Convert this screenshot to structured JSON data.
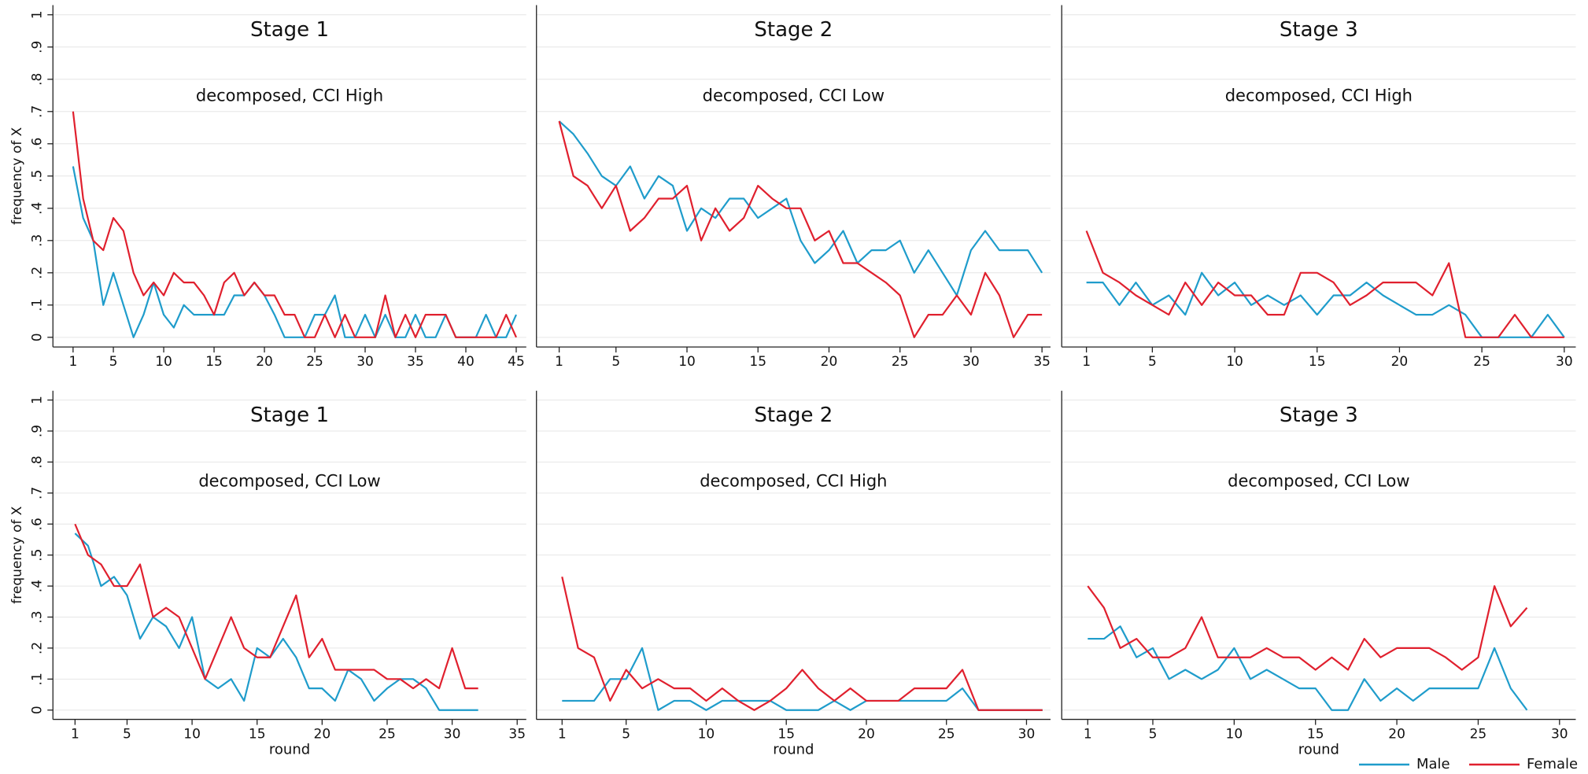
{
  "chart_data": [
    {
      "type": "line",
      "title": "Stage 1",
      "subtitle": "decomposed, CCI High",
      "ylabel": "frequency of X",
      "x": [
        1,
        2,
        3,
        4,
        5,
        6,
        7,
        8,
        9,
        10,
        11,
        12,
        13,
        14,
        15,
        16,
        17,
        18,
        19,
        20,
        21,
        22,
        23,
        24,
        25,
        26,
        27,
        28,
        29,
        30,
        31,
        32,
        33,
        34,
        35,
        36,
        37,
        38,
        39,
        40,
        41,
        42,
        43,
        44,
        45
      ],
      "xlim": [
        -1,
        46
      ],
      "xticks": [
        1,
        5,
        10,
        15,
        20,
        25,
        30,
        35,
        40,
        45
      ],
      "ylim": [
        -0.03,
        1.03
      ],
      "ytick_labels": true,
      "yticks": [
        0,
        {
          "value": 0.1,
          "label": ".1"
        },
        {
          "value": 0.2,
          "label": ".2"
        },
        {
          "value": 0.3,
          "label": ".3"
        },
        {
          "value": 0.4,
          "label": ".4"
        },
        {
          "value": 0.5,
          "label": ".5"
        },
        {
          "value": 0.6,
          "label": ".6"
        },
        {
          "value": 0.7,
          "label": ".7"
        },
        {
          "value": 0.8,
          "label": ".8"
        },
        {
          "value": 0.9,
          "label": ".9"
        },
        1
      ],
      "grid": true,
      "series": [
        {
          "name": "Male",
          "color": "#1f9ccb",
          "values": [
            0.53,
            0.37,
            0.3,
            0.1,
            0.2,
            0.1,
            0,
            0.07,
            0.17,
            0.07,
            0.03,
            0.1,
            0.07,
            0.07,
            0.07,
            0.07,
            0.13,
            0.13,
            0.17,
            0.13,
            0.07,
            0,
            0,
            0,
            0.07,
            0.07,
            0.13,
            0,
            0,
            0.07,
            0,
            0.07,
            0,
            0,
            0.07,
            0,
            0,
            0.07,
            0,
            0,
            0,
            0.07,
            0,
            0,
            0.07
          ]
        },
        {
          "name": "Female",
          "color": "#e0202e",
          "values": [
            0.7,
            0.43,
            0.3,
            0.27,
            0.37,
            0.33,
            0.2,
            0.13,
            0.17,
            0.13,
            0.2,
            0.17,
            0.17,
            0.13,
            0.07,
            0.17,
            0.2,
            0.13,
            0.17,
            0.13,
            0.13,
            0.07,
            0.07,
            0,
            0,
            0.07,
            0,
            0.07,
            0,
            0,
            0,
            0.13,
            0,
            0.07,
            0,
            0.07,
            0.07,
            0.07,
            0,
            0,
            0,
            0,
            0,
            0.07,
            0
          ]
        }
      ]
    },
    {
      "type": "line",
      "title": "Stage 2",
      "subtitle": "decomposed, CCI Low",
      "x": [
        1,
        2,
        3,
        4,
        5,
        6,
        7,
        8,
        9,
        10,
        11,
        12,
        13,
        14,
        15,
        16,
        17,
        18,
        19,
        20,
        21,
        22,
        23,
        24,
        25,
        26,
        27,
        28,
        29,
        30,
        31,
        32,
        33,
        34,
        35
      ],
      "xlim": [
        -0.6,
        35.6
      ],
      "xticks": [
        1,
        5,
        10,
        15,
        20,
        25,
        30,
        35
      ],
      "ylim": [
        -0.03,
        1.03
      ],
      "ytick_labels": false,
      "yticks": [
        0,
        0.1,
        0.2,
        0.3,
        0.4,
        0.5,
        0.6,
        0.7,
        0.8,
        0.9,
        1
      ],
      "grid": true,
      "series": [
        {
          "name": "Male",
          "color": "#1f9ccb",
          "values": [
            0.67,
            0.63,
            0.57,
            0.5,
            0.47,
            0.53,
            0.43,
            0.5,
            0.47,
            0.33,
            0.4,
            0.37,
            0.43,
            0.43,
            0.37,
            0.4,
            0.43,
            0.3,
            0.23,
            0.27,
            0.33,
            0.23,
            0.27,
            0.27,
            0.3,
            0.2,
            0.27,
            0.2,
            0.13,
            0.27,
            0.33,
            0.27,
            0.27,
            0.27,
            0.2
          ]
        },
        {
          "name": "Female",
          "color": "#e0202e",
          "values": [
            0.67,
            0.5,
            0.47,
            0.4,
            0.47,
            0.33,
            0.37,
            0.43,
            0.43,
            0.47,
            0.3,
            0.4,
            0.33,
            0.37,
            0.47,
            0.43,
            0.4,
            0.4,
            0.3,
            0.33,
            0.23,
            0.23,
            0.2,
            0.17,
            0.13,
            0,
            0.07,
            0.07,
            0.13,
            0.07,
            0.2,
            0.13,
            0,
            0.07,
            0.07
          ]
        }
      ]
    },
    {
      "type": "line",
      "title": "Stage 3",
      "subtitle": "decomposed, CCI High",
      "x": [
        1,
        2,
        3,
        4,
        5,
        6,
        7,
        8,
        9,
        10,
        11,
        12,
        13,
        14,
        15,
        16,
        17,
        18,
        19,
        20,
        21,
        22,
        23,
        24,
        25,
        26,
        27,
        28,
        29,
        30
      ],
      "xlim": [
        -0.5,
        30.7
      ],
      "xticks": [
        1,
        5,
        10,
        15,
        20,
        25,
        30
      ],
      "ylim": [
        -0.03,
        1.03
      ],
      "ytick_labels": false,
      "yticks": [
        0,
        0.1,
        0.2,
        0.3,
        0.4,
        0.5,
        0.6,
        0.7,
        0.8,
        0.9,
        1
      ],
      "grid": true,
      "series": [
        {
          "name": "Male",
          "color": "#1f9ccb",
          "values": [
            0.17,
            0.17,
            0.1,
            0.17,
            0.1,
            0.13,
            0.07,
            0.2,
            0.13,
            0.17,
            0.1,
            0.13,
            0.1,
            0.13,
            0.07,
            0.13,
            0.13,
            0.17,
            0.13,
            0.1,
            0.07,
            0.07,
            0.1,
            0.07,
            0,
            0,
            0,
            0,
            0.07,
            0
          ]
        },
        {
          "name": "Female",
          "color": "#e0202e",
          "values": [
            0.33,
            0.2,
            0.17,
            0.13,
            0.1,
            0.07,
            0.17,
            0.1,
            0.17,
            0.13,
            0.13,
            0.07,
            0.07,
            0.2,
            0.2,
            0.17,
            0.1,
            0.13,
            0.17,
            0.17,
            0.17,
            0.13,
            0.23,
            0,
            0,
            0,
            0.07,
            0,
            0,
            0
          ]
        }
      ]
    },
    {
      "type": "line",
      "title": "Stage 1",
      "subtitle": "decomposed, CCI Low",
      "ylabel": "frequency of X",
      "xlabel": "round",
      "x": [
        1,
        2,
        3,
        4,
        5,
        6,
        7,
        8,
        9,
        10,
        11,
        12,
        13,
        14,
        15,
        16,
        17,
        18,
        19,
        20,
        21,
        22,
        23,
        24,
        25,
        26,
        27,
        28,
        29,
        30,
        31,
        32
      ],
      "xlim": [
        -0.7,
        35.7
      ],
      "xticks": [
        1,
        5,
        10,
        15,
        20,
        25,
        30,
        35
      ],
      "ylim": [
        -0.03,
        1.03
      ],
      "ytick_labels": true,
      "yticks": [
        0,
        {
          "value": 0.1,
          "label": ".1"
        },
        {
          "value": 0.2,
          "label": ".2"
        },
        {
          "value": 0.3,
          "label": ".3"
        },
        {
          "value": 0.4,
          "label": ".4"
        },
        {
          "value": 0.5,
          "label": ".5"
        },
        {
          "value": 0.6,
          "label": ".6"
        },
        {
          "value": 0.7,
          "label": ".7"
        },
        {
          "value": 0.8,
          "label": ".8"
        },
        {
          "value": 0.9,
          "label": ".9"
        },
        1
      ],
      "grid": true,
      "series": [
        {
          "name": "Male",
          "color": "#1f9ccb",
          "values": [
            0.57,
            0.53,
            0.4,
            0.43,
            0.37,
            0.23,
            0.3,
            0.27,
            0.2,
            0.3,
            0.1,
            0.07,
            0.1,
            0.03,
            0.2,
            0.17,
            0.23,
            0.17,
            0.07,
            0.07,
            0.03,
            0.13,
            0.1,
            0.03,
            0.07,
            0.1,
            0.1,
            0.07,
            0,
            0,
            0,
            0
          ]
        },
        {
          "name": "Female",
          "color": "#e0202e",
          "values": [
            0.6,
            0.5,
            0.47,
            0.4,
            0.4,
            0.47,
            0.3,
            0.33,
            0.3,
            0.2,
            0.1,
            0.2,
            0.3,
            0.2,
            0.17,
            0.17,
            0.27,
            0.37,
            0.17,
            0.23,
            0.13,
            0.13,
            0.13,
            0.13,
            0.1,
            0.1,
            0.07,
            0.1,
            0.07,
            0.2,
            0.07,
            0.07
          ]
        }
      ]
    },
    {
      "type": "line",
      "title": "Stage 2",
      "subtitle": "decomposed, CCI High",
      "xlabel": "round",
      "x": [
        1,
        2,
        3,
        4,
        5,
        6,
        7,
        8,
        9,
        10,
        11,
        12,
        13,
        14,
        15,
        16,
        17,
        18,
        19,
        20,
        21,
        22,
        23,
        24,
        25,
        26,
        27,
        28,
        29,
        30,
        31
      ],
      "xlim": [
        -0.6,
        31.5
      ],
      "xticks": [
        1,
        5,
        10,
        15,
        20,
        25,
        30
      ],
      "ylim": [
        -0.03,
        1.03
      ],
      "ytick_labels": false,
      "yticks": [
        0,
        0.1,
        0.2,
        0.3,
        0.4,
        0.5,
        0.6,
        0.7,
        0.8,
        0.9,
        1
      ],
      "grid": true,
      "series": [
        {
          "name": "Male",
          "color": "#1f9ccb",
          "values": [
            0.03,
            0.03,
            0.03,
            0.1,
            0.1,
            0.2,
            0,
            0.03,
            0.03,
            0,
            0.03,
            0.03,
            0.03,
            0.03,
            0,
            0,
            0,
            0.03,
            0,
            0.03,
            0.03,
            0.03,
            0.03,
            0.03,
            0.03,
            0.07,
            0,
            0,
            0,
            0,
            0
          ]
        },
        {
          "name": "Female",
          "color": "#e0202e",
          "values": [
            0.43,
            0.2,
            0.17,
            0.03,
            0.13,
            0.07,
            0.1,
            0.07,
            0.07,
            0.03,
            0.07,
            0.03,
            0,
            0.03,
            0.07,
            0.13,
            0.07,
            0.03,
            0.07,
            0.03,
            0.03,
            0.03,
            0.07,
            0.07,
            0.07,
            0.13,
            0,
            0,
            0,
            0,
            0
          ]
        }
      ]
    },
    {
      "type": "line",
      "title": "Stage 3",
      "subtitle": "decomposed, CCI Low",
      "xlabel": "round",
      "legend": "lower right",
      "x": [
        1,
        2,
        3,
        4,
        5,
        6,
        7,
        8,
        9,
        10,
        11,
        12,
        13,
        14,
        15,
        16,
        17,
        18,
        19,
        20,
        21,
        22,
        23,
        24,
        25,
        26,
        27,
        28
      ],
      "xlim": [
        -0.6,
        31
      ],
      "xticks": [
        1,
        5,
        10,
        15,
        20,
        25,
        30
      ],
      "ylim": [
        -0.03,
        1.03
      ],
      "ytick_labels": false,
      "yticks": [
        0,
        0.1,
        0.2,
        0.3,
        0.4,
        0.5,
        0.6,
        0.7,
        0.8,
        0.9,
        1
      ],
      "grid": true,
      "series": [
        {
          "name": "Male",
          "color": "#1f9ccb",
          "values": [
            0.23,
            0.23,
            0.27,
            0.17,
            0.2,
            0.1,
            0.13,
            0.1,
            0.13,
            0.2,
            0.1,
            0.13,
            0.1,
            0.07,
            0.07,
            0,
            0,
            0.1,
            0.03,
            0.07,
            0.03,
            0.07,
            0.07,
            0.07,
            0.07,
            0.2,
            0.07,
            0
          ]
        },
        {
          "name": "Female",
          "color": "#e0202e",
          "values": [
            0.4,
            0.33,
            0.2,
            0.23,
            0.17,
            0.17,
            0.2,
            0.3,
            0.17,
            0.17,
            0.17,
            0.2,
            0.17,
            0.17,
            0.13,
            0.17,
            0.13,
            0.23,
            0.17,
            0.2,
            0.2,
            0.2,
            0.17,
            0.13,
            0.17,
            0.4,
            0.27,
            0.33
          ]
        }
      ]
    }
  ]
}
